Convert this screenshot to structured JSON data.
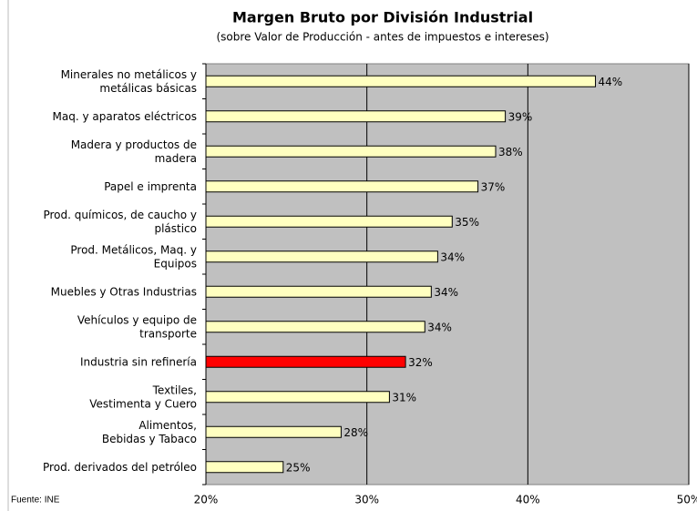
{
  "chart_data": {
    "type": "barh",
    "title": "Margen Bruto por División Industrial",
    "subtitle": "(sobre Valor de Producción - antes de impuestos e intereses)",
    "source": "Fuente: INE",
    "categories": [
      "Minerales no metálicos y\nmetálicas básicas",
      "Maq. y aparatos eléctricos",
      "Madera y productos de\nmadera",
      "Papel e imprenta",
      "Prod. químicos, de caucho y\nplástico",
      "Prod. Metálicos, Maq. y\nEquipos",
      "Muebles y Otras Industrias",
      "Vehículos y equipo de\ntransporte",
      "Industria sin refinería",
      "Textiles,\nVestimenta y Cuero",
      "Alimentos,\nBebidas y Tabaco",
      "Prod. derivados del petróleo"
    ],
    "values": [
      44.2,
      38.6,
      38.0,
      36.9,
      35.3,
      34.4,
      34.0,
      33.6,
      32.4,
      31.4,
      28.4,
      24.8
    ],
    "value_labels": [
      "44%",
      "39%",
      "38%",
      "37%",
      "35%",
      "34%",
      "34%",
      "34%",
      "32%",
      "31%",
      "28%",
      "25%"
    ],
    "colors": [
      "#ffffc0",
      "#ffffc0",
      "#ffffc0",
      "#ffffc0",
      "#ffffc0",
      "#ffffc0",
      "#ffffc0",
      "#ffffc0",
      "#ff0000",
      "#ffffc0",
      "#ffffc0",
      "#ffffc0"
    ],
    "xlim": [
      20,
      50
    ],
    "xticks": [
      {
        "value": 20,
        "label": "20%"
      },
      {
        "value": 30,
        "label": "30%"
      },
      {
        "value": 40,
        "label": "40%"
      },
      {
        "value": 50,
        "label": "50%"
      }
    ],
    "grid": true
  }
}
